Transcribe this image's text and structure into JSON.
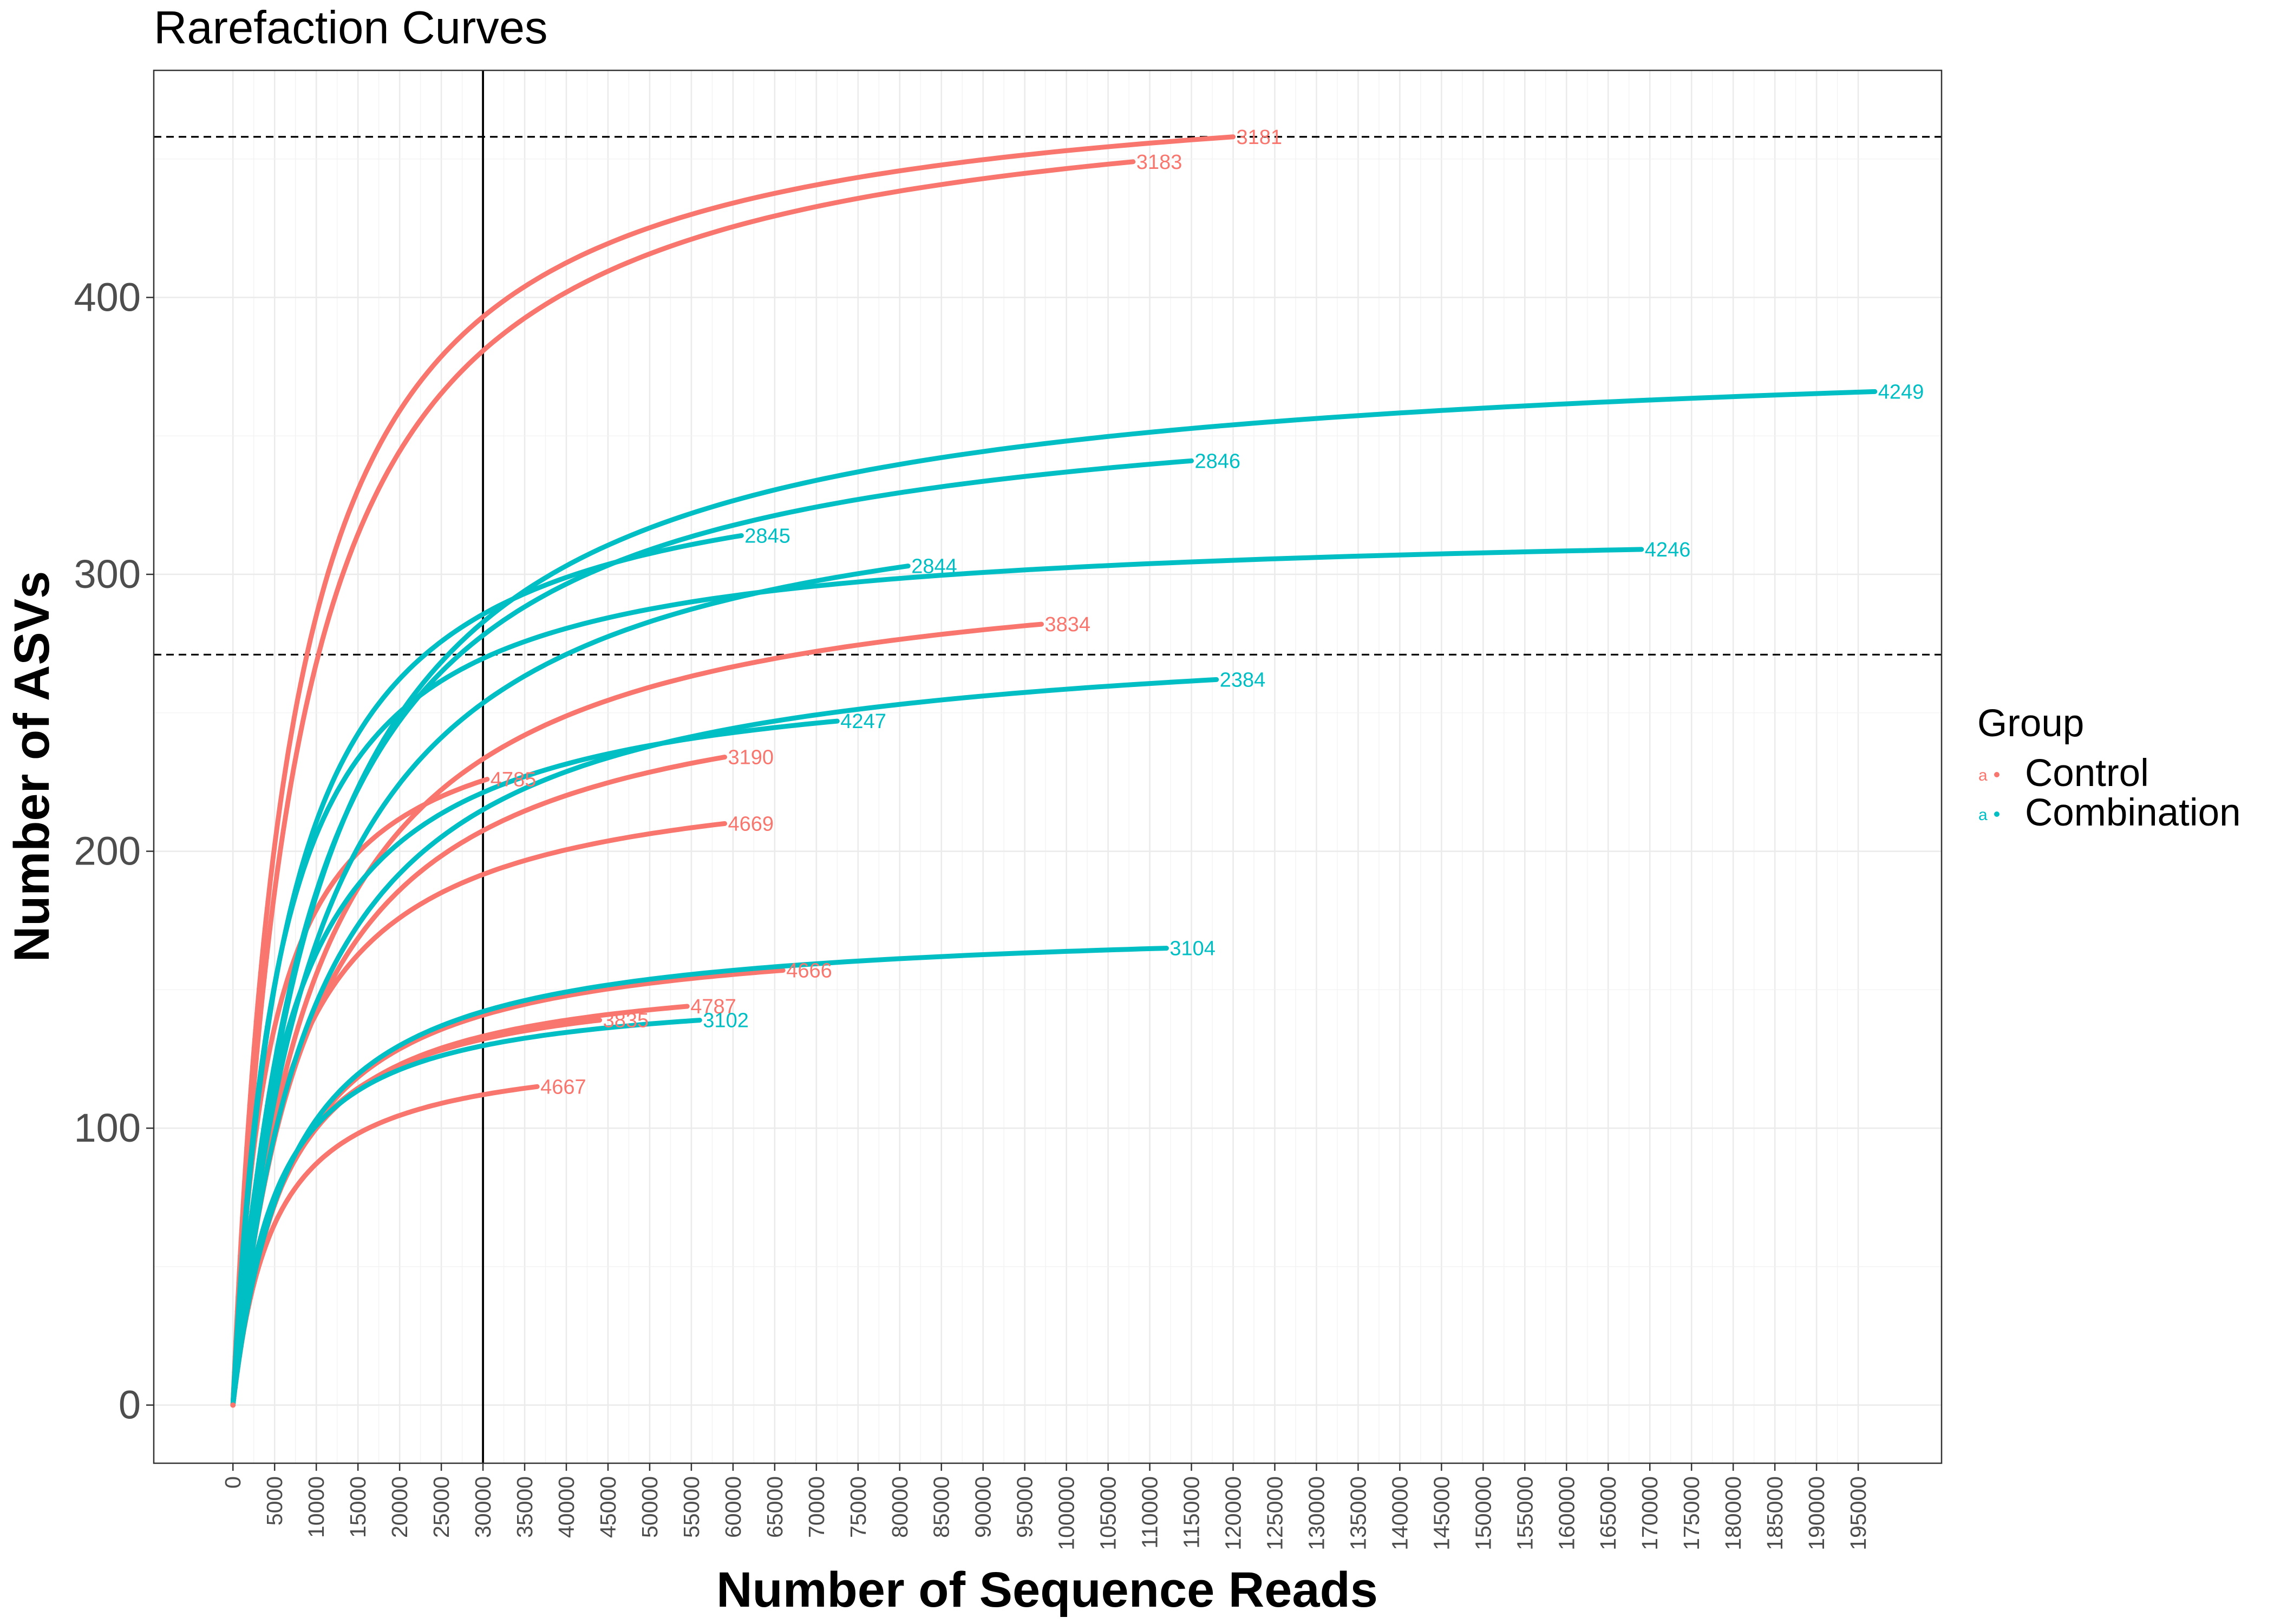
{
  "chart_data": {
    "type": "line",
    "title": "Rarefaction Curves",
    "xlabel": "Number of Sequence Reads",
    "ylabel": "Number of ASVs",
    "xlim": [
      -9500,
      205000
    ],
    "ylim": [
      -21,
      482
    ],
    "x_ticks": [
      0,
      5000,
      10000,
      15000,
      20000,
      25000,
      30000,
      35000,
      40000,
      45000,
      50000,
      55000,
      60000,
      65000,
      70000,
      75000,
      80000,
      85000,
      90000,
      95000,
      100000,
      105000,
      110000,
      115000,
      120000,
      125000,
      130000,
      135000,
      140000,
      145000,
      150000,
      155000,
      160000,
      165000,
      170000,
      175000,
      180000,
      185000,
      190000,
      195000
    ],
    "y_ticks": [
      0,
      100,
      200,
      300,
      400
    ],
    "grid": true,
    "legend": {
      "title": "Group",
      "position": "right",
      "entries": [
        {
          "name": "Control",
          "color": "#F8766D",
          "key_glyph": "a"
        },
        {
          "name": "Combination",
          "color": "#00BFC4",
          "key_glyph": "a"
        }
      ]
    },
    "reference_lines": {
      "vertical_x": 30000,
      "horizontal_y": [
        458,
        271
      ]
    },
    "series": [
      {
        "name": "3181",
        "group": "Control",
        "max_x": 120000,
        "max_y": 458,
        "k": 7000
      },
      {
        "name": "3183",
        "group": "Control",
        "max_x": 108000,
        "max_y": 449,
        "k": 8000
      },
      {
        "name": "3834",
        "group": "Control",
        "max_x": 97000,
        "max_y": 282,
        "k": 10000
      },
      {
        "name": "3190",
        "group": "Control",
        "max_x": 59000,
        "max_y": 234,
        "k": 9000
      },
      {
        "name": "4785",
        "group": "Control",
        "max_x": 30500,
        "max_y": 226,
        "k": 4500
      },
      {
        "name": "4669",
        "group": "Control",
        "max_x": 59000,
        "max_y": 210,
        "k": 6500
      },
      {
        "name": "4666",
        "group": "Control",
        "max_x": 66000,
        "max_y": 157,
        "k": 7000
      },
      {
        "name": "4787",
        "group": "Control",
        "max_x": 54500,
        "max_y": 144,
        "k": 6000
      },
      {
        "name": "3835",
        "group": "Control",
        "max_x": 44000,
        "max_y": 139,
        "k": 5500
      },
      {
        "name": "4667",
        "group": "Control",
        "max_x": 36500,
        "max_y": 115,
        "k": 5000
      },
      {
        "name": "4249",
        "group": "Combination",
        "max_x": 197000,
        "max_y": 366,
        "k": 11000
      },
      {
        "name": "2846",
        "group": "Combination",
        "max_x": 115000,
        "max_y": 341,
        "k": 10000
      },
      {
        "name": "2845",
        "group": "Combination",
        "max_x": 61000,
        "max_y": 314,
        "k": 6500
      },
      {
        "name": "4246",
        "group": "Combination",
        "max_x": 169000,
        "max_y": 309,
        "k": 5500
      },
      {
        "name": "2844",
        "group": "Combination",
        "max_x": 81000,
        "max_y": 303,
        "k": 10500
      },
      {
        "name": "2384",
        "group": "Combination",
        "max_x": 118000,
        "max_y": 262,
        "k": 9500
      },
      {
        "name": "4247",
        "group": "Combination",
        "max_x": 72500,
        "max_y": 247,
        "k": 6500
      },
      {
        "name": "3104",
        "group": "Combination",
        "max_x": 112000,
        "max_y": 165,
        "k": 7000
      },
      {
        "name": "3102",
        "group": "Combination",
        "max_x": 56000,
        "max_y": 139,
        "k": 5000
      }
    ]
  }
}
